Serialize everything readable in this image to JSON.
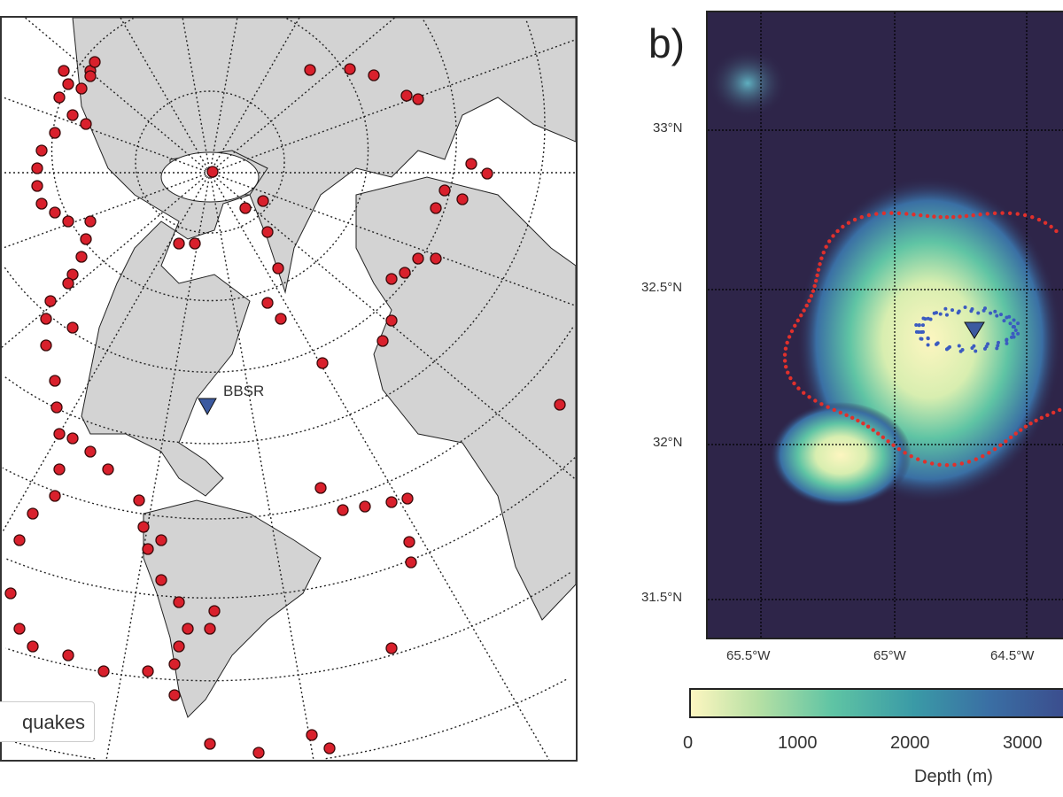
{
  "panel_a": {
    "legend_label": "quakes",
    "station_label": "BBSR",
    "colors": {
      "quake_fill": "#d9202c",
      "land": "#d3d3d3",
      "station": "#3c5aa0"
    }
  },
  "panel_b": {
    "panel_label": "b)",
    "lat_labels": [
      "33°N",
      "32.5°N",
      "32°N",
      "31.5°N"
    ],
    "lon_labels": [
      "65.5°W",
      "65°W",
      "64.5°W"
    ],
    "colorbar": {
      "ticks": [
        "0",
        "1000",
        "2000",
        "3000"
      ],
      "label": "Depth (m)"
    },
    "colors": {
      "deep": "#2e2549",
      "shallow": "#fdf6c0",
      "ring_points": "#e0302c",
      "inner_points": "#3b5bc0"
    }
  }
}
